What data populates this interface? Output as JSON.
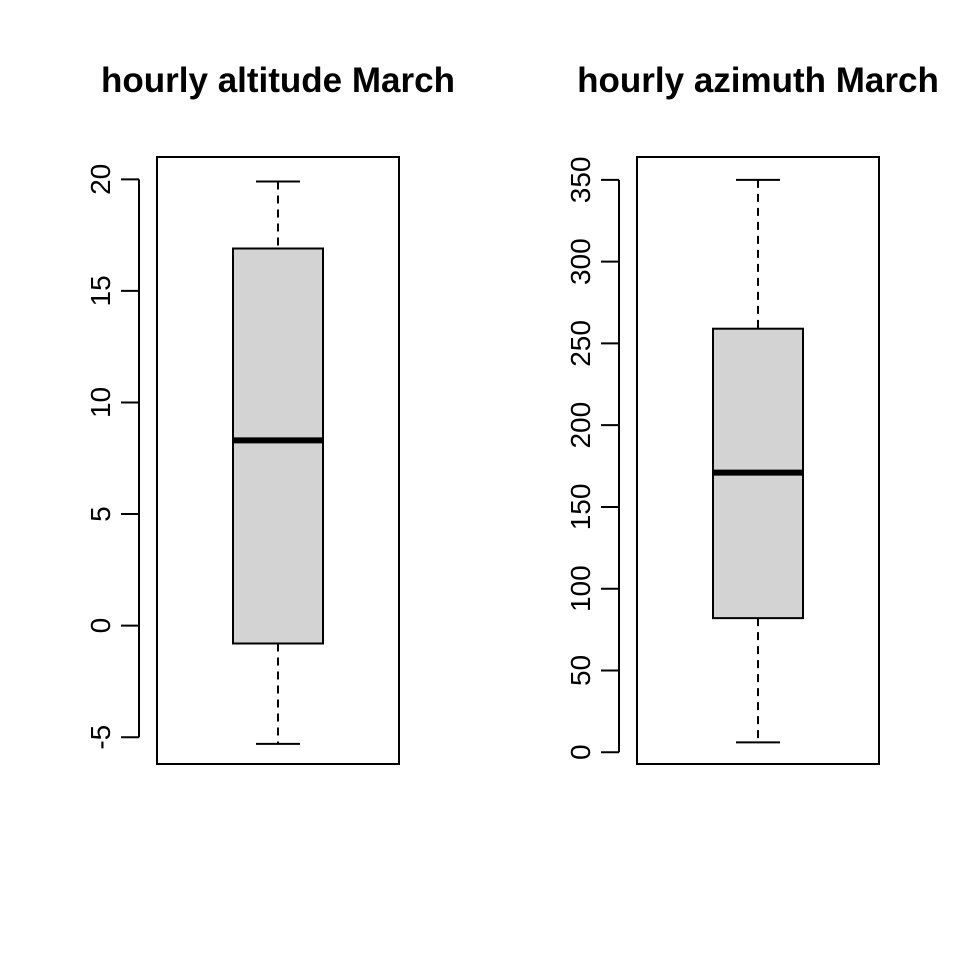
{
  "chart_data": [
    {
      "type": "boxplot",
      "title": "hourly altitude March",
      "xlabel": "",
      "ylabel": "",
      "yticks": [
        -5,
        0,
        5,
        10,
        15,
        20
      ],
      "ytick_labels": [
        "-5",
        "0",
        "5",
        "10",
        "15",
        "20"
      ],
      "ylim": [
        -6.2,
        21.0
      ],
      "grid": false,
      "box": {
        "whisker_low": -5.3,
        "q1": -0.8,
        "median": 8.3,
        "q3": 16.9,
        "whisker_high": 19.9
      },
      "box_fill": "#d3d3d3"
    },
    {
      "type": "boxplot",
      "title": "hourly azimuth March",
      "xlabel": "",
      "ylabel": "",
      "yticks": [
        0,
        50,
        100,
        150,
        200,
        250,
        300,
        350
      ],
      "ytick_labels": [
        "0",
        "50",
        "100",
        "150",
        "200",
        "250",
        "300",
        "350"
      ],
      "ylim": [
        -7.2,
        364.0
      ],
      "grid": false,
      "box": {
        "whisker_low": 6,
        "q1": 82,
        "median": 171,
        "q3": 259,
        "whisker_high": 350
      },
      "box_fill": "#d3d3d3"
    }
  ]
}
